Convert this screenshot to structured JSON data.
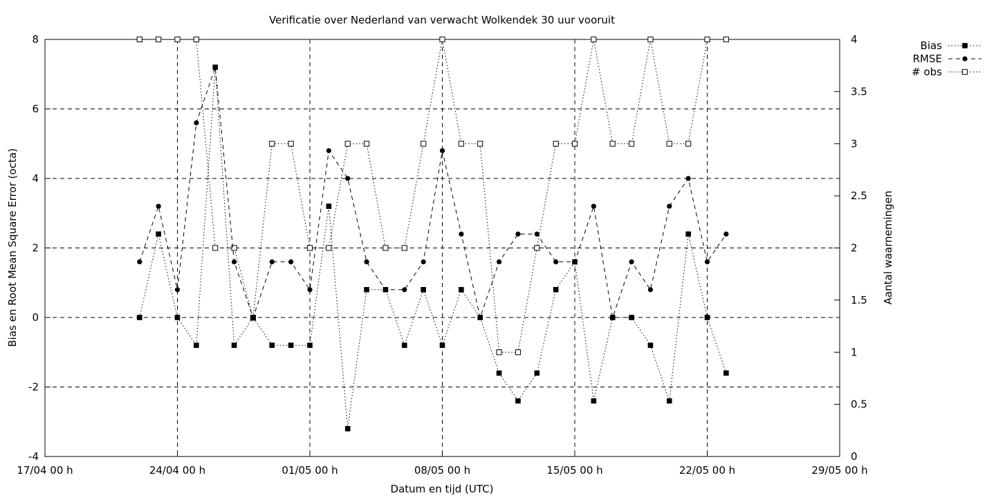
{
  "chart_data": {
    "type": "line",
    "title": "Verificatie over Nederland van verwacht Wolkendek 30 uur vooruit",
    "xlabel": "Datum en tijd (UTC)",
    "ylabel": "Bias en Root Mean Square Error (octa)",
    "y2label": "Aantal waarnemingen",
    "x_ticks": [
      "17/04 00 h",
      "24/04 00 h",
      "01/05 00 h",
      "08/05 00 h",
      "15/05 00 h",
      "22/05 00 h",
      "29/05 00 h"
    ],
    "x_tick_days": [
      0,
      7,
      14,
      21,
      28,
      35,
      42
    ],
    "x_range_days": [
      0,
      42
    ],
    "ylim": [
      -4,
      8
    ],
    "y_ticks": [
      -4,
      -2,
      0,
      2,
      4,
      6,
      8
    ],
    "y2lim": [
      0,
      4
    ],
    "y2_ticks": [
      0,
      0.5,
      1,
      1.5,
      2,
      2.5,
      3,
      3.5,
      4
    ],
    "grid": "dashed, x at week ticks, y at each tick",
    "legend_position": "top-right, outside plot",
    "x_days": [
      5,
      6,
      7,
      8,
      9,
      10,
      11,
      12,
      13,
      14,
      15,
      16,
      17,
      18,
      19,
      20,
      21,
      22,
      23,
      24,
      25,
      26,
      27,
      28,
      29,
      30,
      31,
      32,
      33,
      34,
      35,
      36
    ],
    "series": [
      {
        "name": "Bias",
        "axis": "left",
        "marker": "filled-square",
        "line": "dotted",
        "values": [
          0,
          2.4,
          0,
          -0.8,
          7.2,
          -0.8,
          0,
          -0.8,
          -0.8,
          -0.8,
          3.2,
          -3.2,
          0.8,
          0.8,
          -0.8,
          0.8,
          -0.8,
          0.8,
          0,
          -1.6,
          -2.4,
          -1.6,
          0.8,
          1.6,
          -2.4,
          0,
          0,
          -0.8,
          -2.4,
          2.4,
          0,
          -1.6
        ]
      },
      {
        "name": "RMSE",
        "axis": "left",
        "marker": "filled-circle",
        "line": "dashed",
        "values": [
          1.6,
          3.2,
          0.8,
          5.6,
          7.2,
          1.6,
          0,
          1.6,
          1.6,
          0.8,
          4.8,
          4.0,
          1.6,
          0.8,
          0.8,
          1.6,
          4.8,
          2.4,
          0,
          1.6,
          2.4,
          2.4,
          1.6,
          1.6,
          3.2,
          0,
          1.6,
          0.8,
          3.2,
          4.0,
          1.6,
          2.4
        ]
      },
      {
        "name": "# obs",
        "axis": "right",
        "marker": "open-square",
        "line": "dotted",
        "values": [
          4,
          4,
          4,
          4,
          2,
          2,
          1.33,
          3,
          3,
          2,
          2,
          3,
          3,
          2,
          2,
          3,
          4,
          3,
          3,
          1,
          1,
          2,
          3,
          3,
          4,
          3,
          3,
          4,
          3,
          3,
          4,
          4
        ]
      }
    ]
  }
}
